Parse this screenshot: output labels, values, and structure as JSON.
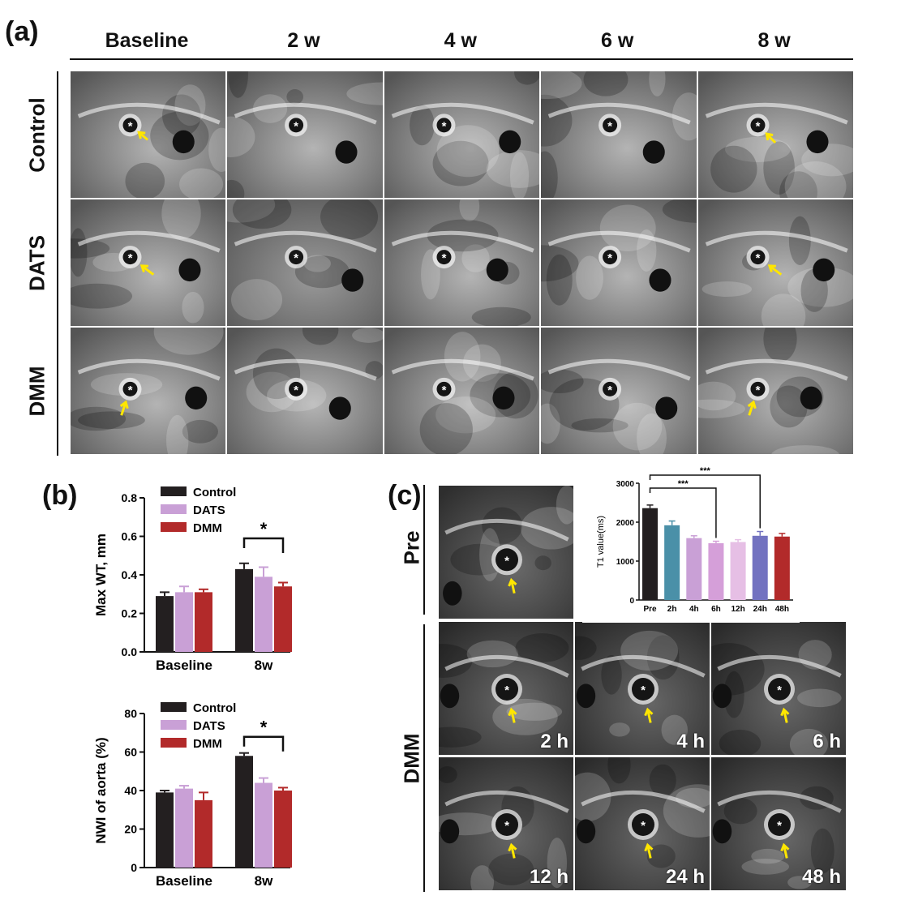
{
  "panels": {
    "a": {
      "label": "(a)",
      "columns": [
        "Baseline",
        "2 w",
        "4 w",
        "6 w",
        "8 w"
      ],
      "rows": [
        "Control",
        "DATS",
        "DMM"
      ]
    },
    "b": {
      "label": "(b)"
    },
    "c": {
      "label": "(c)",
      "pre_label": "Pre",
      "dmm_label": "DMM",
      "timepoints": [
        "2 h",
        "4 h",
        "6 h",
        "12 h",
        "24 h",
        "48 h"
      ]
    }
  },
  "colors": {
    "control": "#231f20",
    "dats": "#c9a0d6",
    "dmm": "#b22a2a",
    "arrow": "#ffe600"
  },
  "chart_data": [
    {
      "type": "bar",
      "categories": [
        "Baseline",
        "8w"
      ],
      "series": [
        {
          "name": "Control",
          "values": [
            0.29,
            0.43
          ],
          "errors": [
            0.02,
            0.03
          ]
        },
        {
          "name": "DATS",
          "values": [
            0.31,
            0.39
          ],
          "errors": [
            0.03,
            0.05
          ]
        },
        {
          "name": "DMM",
          "values": [
            0.31,
            0.34
          ],
          "errors": [
            0.015,
            0.02
          ]
        }
      ],
      "ylabel": "Max WT, mm",
      "ylim": [
        0,
        0.8
      ],
      "yticks": [
        "0.0",
        "0.2",
        "0.4",
        "0.6",
        "0.8"
      ],
      "significance": [
        {
          "from": "Control",
          "to": "DMM",
          "category": "8w",
          "mark": "*"
        }
      ],
      "legend": "top-right"
    },
    {
      "type": "bar",
      "categories": [
        "Baseline",
        "8w"
      ],
      "series": [
        {
          "name": "Control",
          "values": [
            39,
            58
          ],
          "errors": [
            1,
            1.5
          ]
        },
        {
          "name": "DATS",
          "values": [
            41,
            44
          ],
          "errors": [
            1.5,
            2.5
          ]
        },
        {
          "name": "DMM",
          "values": [
            35,
            40
          ],
          "errors": [
            4,
            1.5
          ]
        }
      ],
      "ylabel": "NWI of aorta (%)",
      "ylim": [
        0,
        80
      ],
      "yticks": [
        "0",
        "20",
        "40",
        "60",
        "80"
      ],
      "significance": [
        {
          "from": "Control",
          "to": "DMM",
          "category": "8w",
          "mark": "*"
        }
      ],
      "legend": "top-right"
    },
    {
      "type": "bar",
      "categories": [
        "Pre",
        "2h",
        "4h",
        "6h",
        "12h",
        "24h",
        "48h"
      ],
      "values": [
        2360,
        1920,
        1590,
        1460,
        1490,
        1650,
        1630
      ],
      "errors": [
        80,
        110,
        60,
        50,
        60,
        110,
        80
      ],
      "bar_colors": [
        "#231f20",
        "#4a90a8",
        "#c9a0d6",
        "#d59fd9",
        "#e6bfe5",
        "#7272c0",
        "#b22a2a"
      ],
      "ylabel": "T1 value(ms)",
      "ylim": [
        0,
        3000
      ],
      "yticks": [
        "0",
        "1000",
        "2000",
        "3000"
      ],
      "significance": [
        {
          "from": "Pre",
          "to": "6h",
          "mark": "***"
        },
        {
          "from": "Pre",
          "to": "24h",
          "mark": "***"
        }
      ]
    }
  ]
}
